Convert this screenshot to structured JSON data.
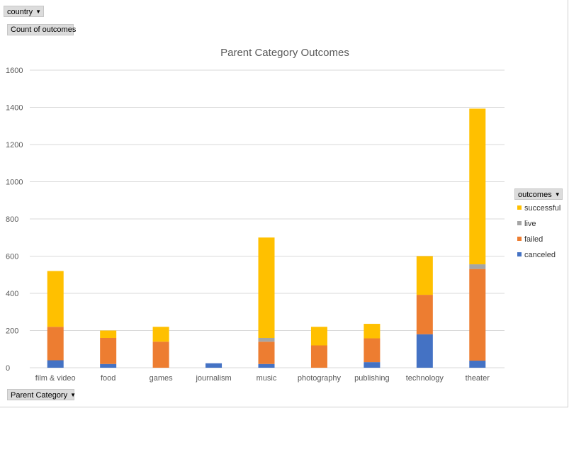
{
  "filters": {
    "country_label": "country",
    "measure_label": "Count of outcomes",
    "axis_field_label": "Parent Category",
    "legend_field_label": "outcomes"
  },
  "colors": {
    "successful": "#FFC000",
    "live": "#A5A5A5",
    "failed": "#ED7D31",
    "canceled": "#4472C4",
    "gridline": "#d9d9d9",
    "axis_text": "#595959"
  },
  "icons": {
    "dropdown": "dropdown-arrow-icon"
  },
  "chart_data": {
    "type": "bar",
    "stacked": true,
    "title": "Parent Category Outcomes",
    "xlabel": "",
    "ylabel": "",
    "ylim": [
      0,
      1600
    ],
    "yticks": [
      0,
      200,
      400,
      600,
      800,
      1000,
      1200,
      1400,
      1600
    ],
    "grid": true,
    "legend_position": "right",
    "categories": [
      "film & video",
      "food",
      "games",
      "journalism",
      "music",
      "photography",
      "publishing",
      "technology",
      "theater"
    ],
    "series": [
      {
        "name": "canceled",
        "values": [
          40,
          20,
          0,
          24,
          20,
          0,
          30,
          180,
          38
        ]
      },
      {
        "name": "failed",
        "values": [
          180,
          140,
          140,
          0,
          120,
          120,
          128,
          212,
          493
        ]
      },
      {
        "name": "live",
        "values": [
          0,
          0,
          0,
          0,
          20,
          0,
          0,
          0,
          25
        ]
      },
      {
        "name": "successful",
        "values": [
          300,
          40,
          80,
          0,
          540,
          100,
          78,
          208,
          837
        ]
      }
    ],
    "legend_order": [
      "successful",
      "live",
      "failed",
      "canceled"
    ]
  }
}
